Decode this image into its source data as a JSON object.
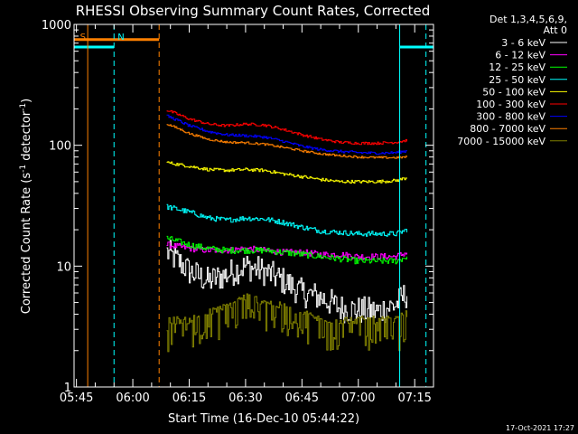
{
  "chart_data": {
    "type": "line",
    "title": "RHESSI Observing Summary Count Rates, Corrected",
    "xlabel": "Start Time (16-Dec-10 05:44:22)",
    "ylabel_main": "Corrected Count Rate (s",
    "ylabel_sup1": "-1",
    "ylabel_mid": " detector",
    "ylabel_sup2": "-1",
    "ylabel_end": ")",
    "y_scale": "log",
    "ylim": [
      1,
      1000
    ],
    "xlim": [
      "05:44:22",
      "07:20:00"
    ],
    "x_ticks": [
      "05:45",
      "06:00",
      "06:15",
      "06:30",
      "06:45",
      "07:00",
      "07:15"
    ],
    "y_ticks": [
      "1",
      "10",
      "100",
      "1000"
    ],
    "grid": false,
    "legend_position": "right",
    "legend_header": [
      "Det 1,3,4,5,6,9,",
      "Att 0"
    ],
    "timestamp": "17-Oct-2021 17:27",
    "series": [
      {
        "name": "3 - 6 keV",
        "color": "#ffffff",
        "x": [
          "06:09",
          "06:15",
          "06:20",
          "06:25",
          "06:30",
          "06:35",
          "06:40",
          "06:45",
          "06:50",
          "06:55",
          "07:00",
          "07:05",
          "07:10",
          "07:13"
        ],
        "values": [
          13,
          9,
          7.5,
          8.5,
          10,
          9,
          7.5,
          6,
          5.5,
          4.5,
          4.3,
          4.2,
          4.8,
          6
        ]
      },
      {
        "name": "6 - 12 keV",
        "color": "#ff00ff",
        "x": [
          "06:09",
          "06:15",
          "06:20",
          "06:25",
          "06:30",
          "06:35",
          "06:40",
          "06:45",
          "06:50",
          "06:55",
          "07:00",
          "07:05",
          "07:10",
          "07:13"
        ],
        "values": [
          15,
          14,
          13.5,
          13.5,
          14,
          13.5,
          13,
          13,
          12.5,
          12.5,
          12,
          12,
          12,
          13
        ]
      },
      {
        "name": "12 - 25 keV",
        "color": "#00ff00",
        "x": [
          "06:09",
          "06:15",
          "06:20",
          "06:25",
          "06:30",
          "06:35",
          "06:40",
          "06:45",
          "06:50",
          "06:55",
          "07:00",
          "07:05",
          "07:10",
          "07:13"
        ],
        "values": [
          17,
          15,
          14,
          13.5,
          13.5,
          13.5,
          13,
          12.5,
          12,
          11.5,
          11,
          11,
          11,
          12
        ]
      },
      {
        "name": "25 - 50 keV",
        "color": "#00ffff",
        "x": [
          "06:09",
          "06:15",
          "06:20",
          "06:25",
          "06:30",
          "06:35",
          "06:40",
          "06:45",
          "06:50",
          "06:55",
          "07:00",
          "07:05",
          "07:10",
          "07:13"
        ],
        "values": [
          31,
          28,
          25,
          24,
          25,
          24.5,
          23,
          21,
          19.5,
          19,
          18.5,
          18.5,
          18.5,
          20
        ]
      },
      {
        "name": "50 - 100 keV",
        "color": "#ffff00",
        "x": [
          "06:09",
          "06:15",
          "06:20",
          "06:25",
          "06:30",
          "06:35",
          "06:40",
          "06:45",
          "06:50",
          "06:55",
          "07:00",
          "07:05",
          "07:10",
          "07:13"
        ],
        "values": [
          72,
          67,
          63,
          62,
          63,
          62,
          58,
          55,
          52,
          50,
          50,
          50,
          51,
          54
        ]
      },
      {
        "name": "100 - 300 keV",
        "color": "#ff0000",
        "x": [
          "06:09",
          "06:15",
          "06:20",
          "06:25",
          "06:30",
          "06:35",
          "06:40",
          "06:45",
          "06:50",
          "06:55",
          "07:00",
          "07:05",
          "07:10",
          "07:13"
        ],
        "values": [
          195,
          165,
          150,
          145,
          150,
          147,
          135,
          122,
          112,
          106,
          104,
          104,
          106,
          110
        ]
      },
      {
        "name": "300 - 800 keV",
        "color": "#0000ff",
        "x": [
          "06:09",
          "06:15",
          "06:20",
          "06:25",
          "06:30",
          "06:35",
          "06:40",
          "06:45",
          "06:50",
          "06:55",
          "07:00",
          "07:05",
          "07:10",
          "07:13"
        ],
        "values": [
          175,
          145,
          130,
          122,
          120,
          117,
          108,
          98,
          92,
          89,
          87,
          86,
          87,
          90
        ]
      },
      {
        "name": "800 - 7000 keV",
        "color": "#ff8000",
        "x": [
          "06:09",
          "06:15",
          "06:20",
          "06:25",
          "06:30",
          "06:35",
          "06:40",
          "06:45",
          "06:50",
          "06:55",
          "07:00",
          "07:05",
          "07:10",
          "07:13"
        ],
        "values": [
          150,
          125,
          112,
          106,
          105,
          102,
          96,
          90,
          85,
          82,
          80,
          79,
          79,
          80
        ]
      },
      {
        "name": "7000 - 15000 keV",
        "color": "#808000",
        "x": [
          "06:09",
          "06:15",
          "06:20",
          "06:25",
          "06:30",
          "06:35",
          "06:40",
          "06:45",
          "06:50",
          "06:55",
          "07:00",
          "07:05",
          "07:10",
          "07:13"
        ],
        "values": [
          3.5,
          3.5,
          4,
          4.5,
          5.5,
          5,
          4.5,
          4,
          3.5,
          3.5,
          3.5,
          3.5,
          3.5,
          4
        ]
      }
    ],
    "annotations": [
      {
        "text": "S",
        "color": "#ff8000",
        "x": "05:45"
      },
      {
        "text": "N",
        "color": "#00ffff",
        "x": "05:55"
      }
    ],
    "segments": [
      {
        "name": "saa-bar",
        "color": "#ff8000",
        "x0": "05:44:22",
        "x1": "06:07",
        "y": 750
      },
      {
        "name": "night-bar-left",
        "color": "#00ffff",
        "x0": "05:44:22",
        "x1": "05:55",
        "y": 650
      },
      {
        "name": "night-bar-right",
        "color": "#00ffff",
        "x0": "07:11",
        "x1": "07:20:00",
        "y": 650
      }
    ],
    "vlines": [
      {
        "name": "saa-start-line",
        "color": "#ff8000",
        "x": "05:48",
        "style": "solid"
      },
      {
        "name": "saa-end-line",
        "color": "#ff8000",
        "x": "06:07",
        "style": "dashed"
      },
      {
        "name": "night-end-line",
        "color": "#00ffff",
        "x": "05:55",
        "style": "dashed"
      },
      {
        "name": "night-start-line",
        "color": "#00ffff",
        "x": "07:11",
        "style": "solid"
      },
      {
        "name": "night-end-line-2",
        "color": "#00ffff",
        "x": "07:18",
        "style": "dashed"
      }
    ]
  }
}
